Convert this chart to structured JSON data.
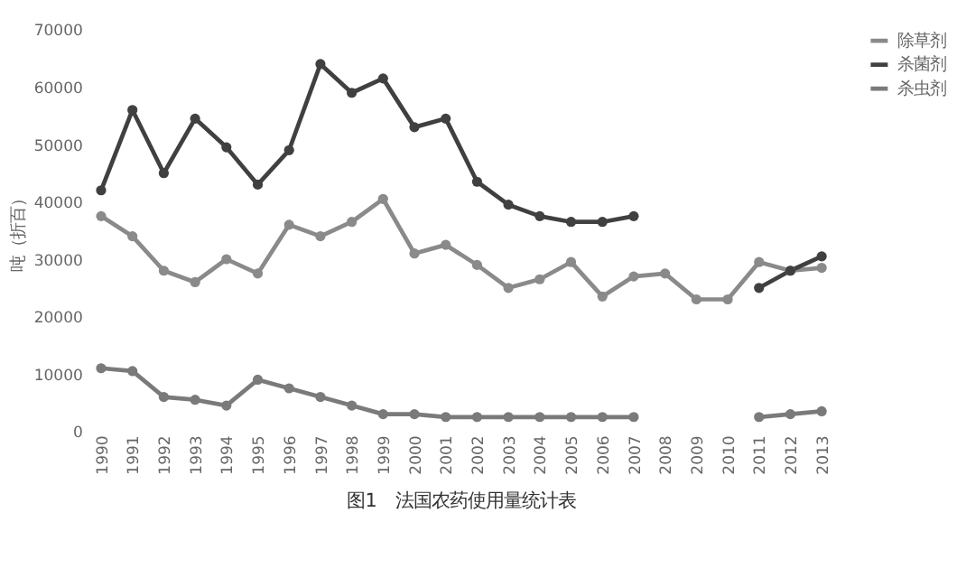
{
  "chart_data": {
    "type": "line",
    "categories": [
      "1990",
      "1991",
      "1992",
      "1993",
      "1994",
      "1995",
      "1996",
      "1997",
      "1998",
      "1999",
      "2000",
      "2001",
      "2002",
      "2003",
      "2004",
      "2005",
      "2006",
      "2007",
      "2008",
      "2009",
      "2010",
      "2011",
      "2012",
      "2013"
    ],
    "series": [
      {
        "name": "除草剂",
        "color": "#8a8a8a",
        "values": [
          37500,
          34000,
          28000,
          26000,
          30000,
          27500,
          36000,
          34000,
          36500,
          40500,
          31000,
          32500,
          29000,
          25000,
          26500,
          29500,
          23500,
          27000,
          27500,
          23000,
          23000,
          29500,
          28000,
          28500
        ]
      },
      {
        "name": "杀菌剂",
        "color": "#404040",
        "values": [
          42000,
          56000,
          45000,
          54500,
          49500,
          43000,
          49000,
          64000,
          59000,
          61500,
          53000,
          54500,
          43500,
          39500,
          37500,
          36500,
          36500,
          37500,
          null,
          null,
          null,
          25000,
          28000,
          30500
        ]
      },
      {
        "name": "杀虫剂",
        "color": "#7a7a7a",
        "values": [
          11000,
          10500,
          6000,
          5500,
          4500,
          9000,
          7500,
          6000,
          4500,
          3000,
          3000,
          2500,
          2500,
          2500,
          2500,
          2500,
          2500,
          2500,
          null,
          null,
          null,
          2500,
          3000,
          3500
        ]
      }
    ],
    "ylabel": "吨（折百）",
    "ylim": [
      0,
      70000
    ],
    "yticks": [
      0,
      10000,
      20000,
      30000,
      40000,
      50000,
      60000,
      70000
    ],
    "legend": "right",
    "marker": "circle",
    "line_style": "solid",
    "grid": false,
    "annotations": [
      "图1　法国农药使用量统计表"
    ]
  }
}
